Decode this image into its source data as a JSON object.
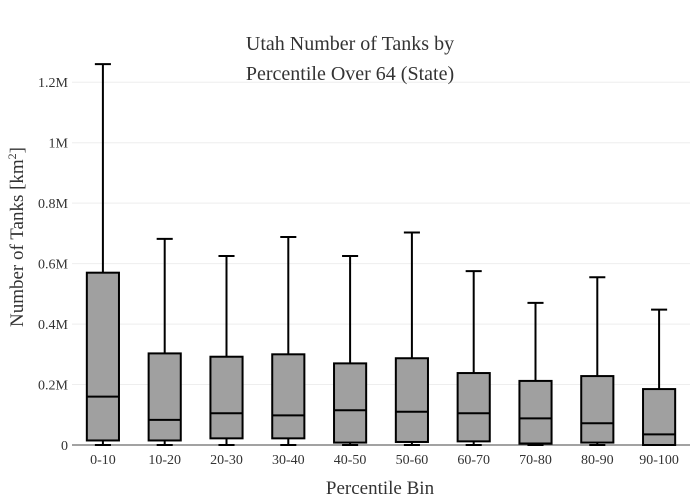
{
  "chart_data": {
    "type": "box",
    "title_lines": [
      "Utah Number of Tanks by",
      "Percentile Over 64 (State)"
    ],
    "xlabel": "Percentile Bin",
    "ylabel": "Number of Tanks  [km",
    "ylabel_sup": "2",
    "ylabel_close": "]",
    "ylim": [
      0,
      1300000
    ],
    "yticks": [
      {
        "value": 0,
        "label": "0"
      },
      {
        "value": 200000,
        "label": "0.2M"
      },
      {
        "value": 400000,
        "label": "0.4M"
      },
      {
        "value": 600000,
        "label": "0.6M"
      },
      {
        "value": 800000,
        "label": "0.8M"
      },
      {
        "value": 1000000,
        "label": "1M"
      },
      {
        "value": 1200000,
        "label": "1.2M"
      }
    ],
    "categories": [
      "0-10",
      "10-20",
      "20-30",
      "30-40",
      "40-50",
      "50-60",
      "60-70",
      "70-80",
      "80-90",
      "90-100"
    ],
    "boxes": [
      {
        "min": 0,
        "q1": 15000,
        "median": 160000,
        "q3": 570000,
        "max": 1260000
      },
      {
        "min": 0,
        "q1": 15000,
        "median": 83000,
        "q3": 303000,
        "max": 682000
      },
      {
        "min": 0,
        "q1": 22000,
        "median": 105000,
        "q3": 292000,
        "max": 625000
      },
      {
        "min": 0,
        "q1": 22000,
        "median": 98000,
        "q3": 300000,
        "max": 688000
      },
      {
        "min": 0,
        "q1": 8000,
        "median": 115000,
        "q3": 270000,
        "max": 625000
      },
      {
        "min": 0,
        "q1": 10000,
        "median": 110000,
        "q3": 287000,
        "max": 703000
      },
      {
        "min": 0,
        "q1": 12000,
        "median": 105000,
        "q3": 238000,
        "max": 575000
      },
      {
        "min": 0,
        "q1": 5000,
        "median": 88000,
        "q3": 212000,
        "max": 470000
      },
      {
        "min": 0,
        "q1": 8000,
        "median": 72000,
        "q3": 228000,
        "max": 555000
      },
      {
        "min": 0,
        "q1": 0,
        "median": 35000,
        "q3": 185000,
        "max": 448000
      }
    ],
    "colors": {
      "box_fill": "#a0a0a0",
      "box_stroke": "#000000",
      "grid": "#eeeeee",
      "text": "#333333"
    }
  }
}
